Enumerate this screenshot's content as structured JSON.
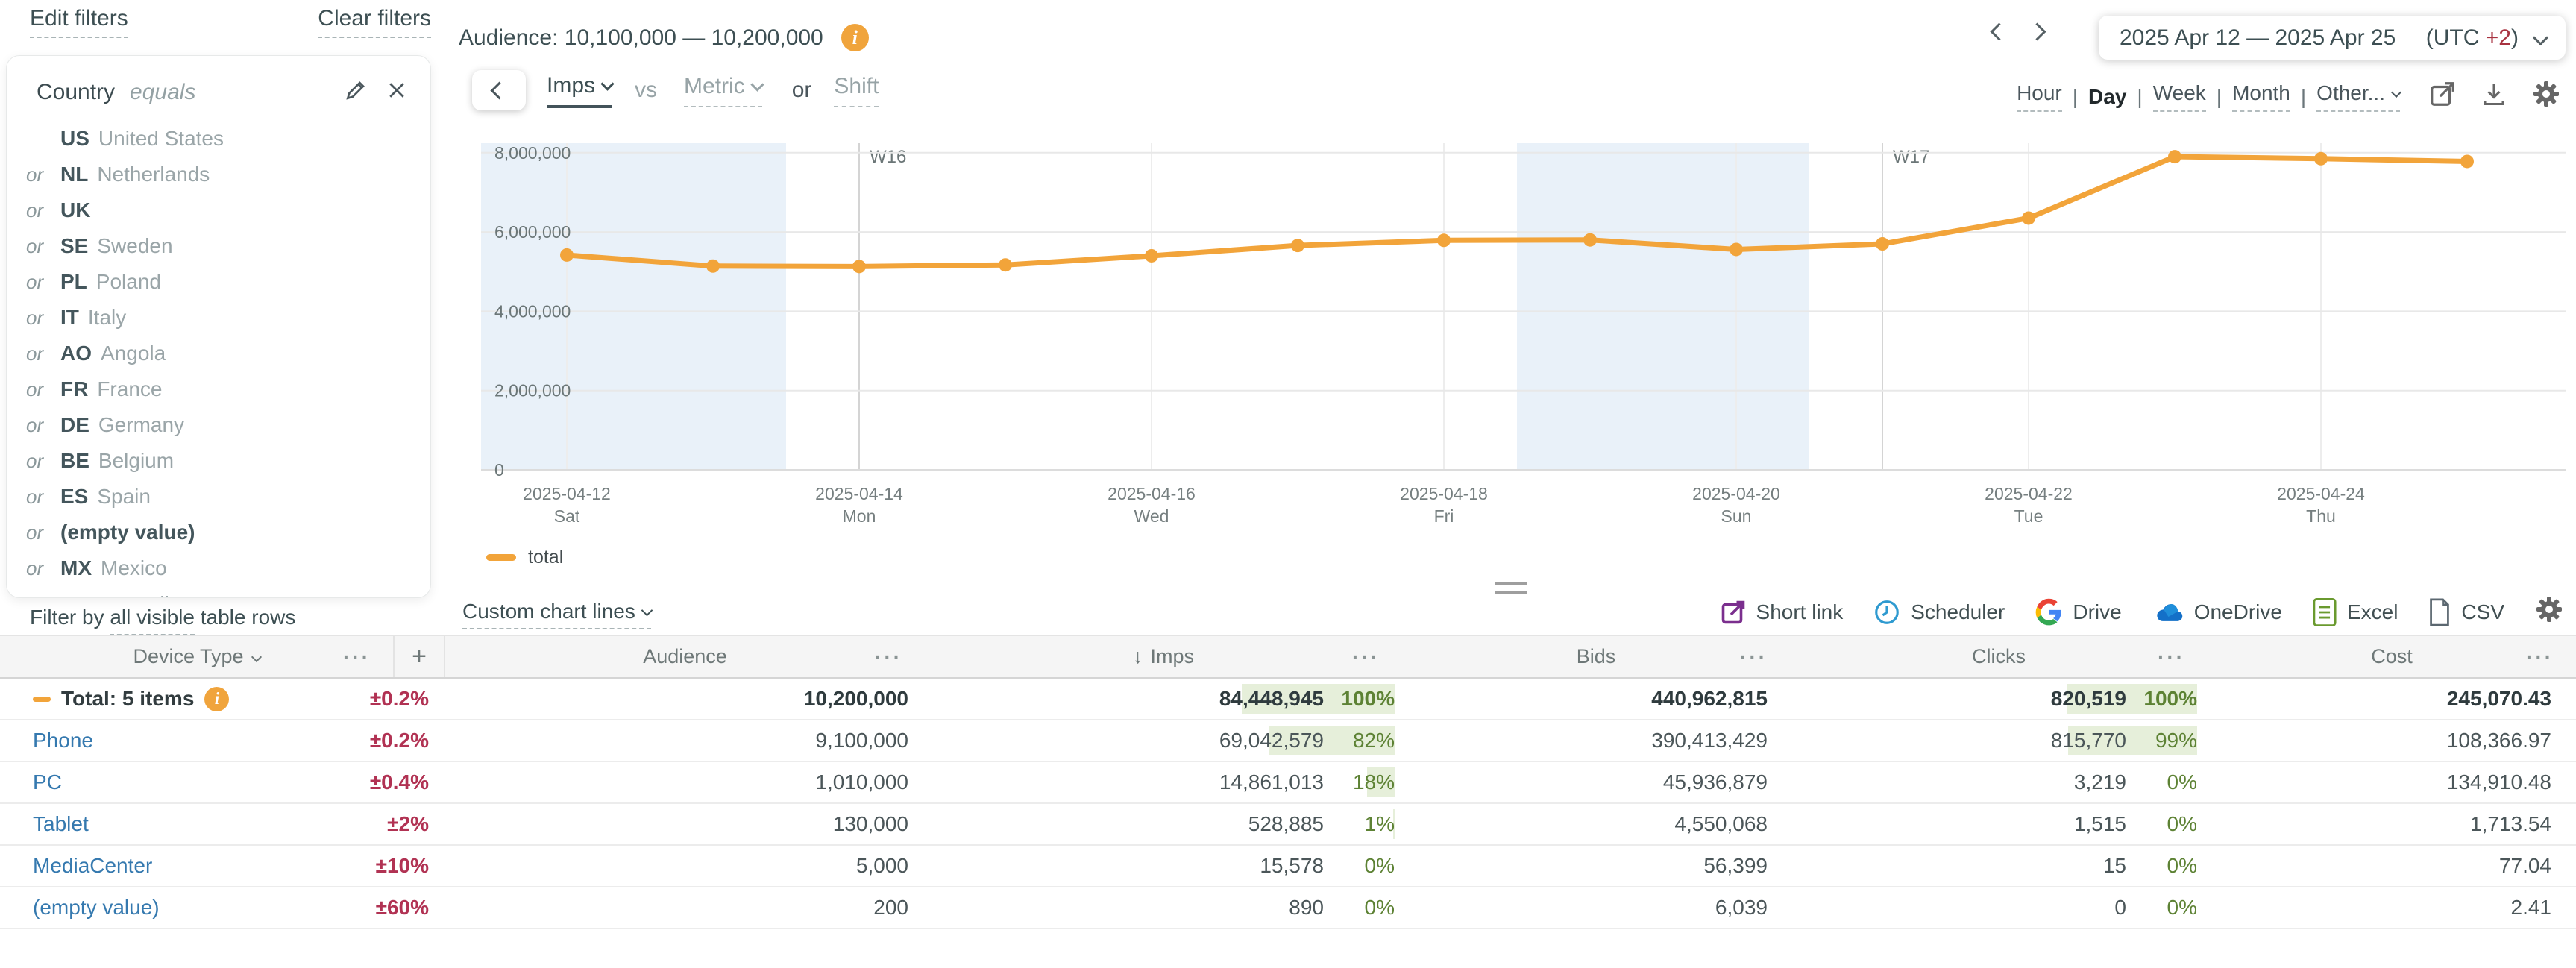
{
  "filters": {
    "edit_label": "Edit filters",
    "clear_label": "Clear filters",
    "field": "Country",
    "operator": "equals",
    "items": [
      {
        "or": "",
        "code": "US",
        "name": "United States"
      },
      {
        "or": "or",
        "code": "NL",
        "name": "Netherlands"
      },
      {
        "or": "or",
        "code": "UK",
        "name": ""
      },
      {
        "or": "or",
        "code": "SE",
        "name": "Sweden"
      },
      {
        "or": "or",
        "code": "PL",
        "name": "Poland"
      },
      {
        "or": "or",
        "code": "IT",
        "name": "Italy"
      },
      {
        "or": "or",
        "code": "AO",
        "name": "Angola"
      },
      {
        "or": "or",
        "code": "FR",
        "name": "France"
      },
      {
        "or": "or",
        "code": "DE",
        "name": "Germany"
      },
      {
        "or": "or",
        "code": "BE",
        "name": "Belgium"
      },
      {
        "or": "or",
        "code": "ES",
        "name": "Spain"
      },
      {
        "or": "or",
        "code": "(empty value)",
        "name": ""
      },
      {
        "or": "or",
        "code": "MX",
        "name": "Mexico"
      },
      {
        "or": "or",
        "code": "AU",
        "name": "Australia"
      }
    ],
    "filter_by_prefix": "Filter by",
    "filter_by_link": "all visible",
    "filter_by_suffix": "table rows"
  },
  "header": {
    "audience_label": "Audience:",
    "audience_value": "10,100,000 — 10,200,000",
    "metric_selected": "Imps",
    "vs_label": "vs",
    "metric_placeholder": "Metric",
    "or_label": "or",
    "shift_label": "Shift",
    "date_range": "2025 Apr 12 — 2025 Apr 25",
    "utc_prefix": "(UTC",
    "utc_offset": "+2",
    "utc_suffix": ")",
    "granularity": [
      "Hour",
      "Day",
      "Week",
      "Month",
      "Other..."
    ],
    "granularity_selected": "Day"
  },
  "icons": {
    "menu": "···",
    "sort": "↓",
    "plus": "+"
  },
  "chart_data": {
    "type": "line",
    "title": "",
    "x": [
      "2025-04-12",
      "2025-04-13",
      "2025-04-14",
      "2025-04-15",
      "2025-04-16",
      "2025-04-17",
      "2025-04-18",
      "2025-04-19",
      "2025-04-20",
      "2025-04-21",
      "2025-04-22",
      "2025-04-23",
      "2025-04-24",
      "2025-04-25"
    ],
    "series": [
      {
        "name": "total",
        "color": "#f2a43a",
        "values": [
          5420000,
          5140000,
          5130000,
          5170000,
          5400000,
          5660000,
          5790000,
          5800000,
          5560000,
          5700000,
          6350000,
          7900000,
          7850000,
          7780000
        ]
      }
    ],
    "y_ticks": [
      0,
      2000000,
      4000000,
      6000000,
      8000000
    ],
    "ylim": [
      0,
      8800000
    ],
    "x_ticks": [
      {
        "date": "2025-04-12",
        "day": "Sat"
      },
      {
        "date": "2025-04-14",
        "day": "Mon"
      },
      {
        "date": "2025-04-16",
        "day": "Wed"
      },
      {
        "date": "2025-04-18",
        "day": "Fri"
      },
      {
        "date": "2025-04-20",
        "day": "Sun"
      },
      {
        "date": "2025-04-22",
        "day": "Tue"
      },
      {
        "date": "2025-04-24",
        "day": "Thu"
      }
    ],
    "week_markers": [
      {
        "label": "W16",
        "x": "2025-04-14"
      },
      {
        "label": "W17",
        "x": "2025-04-21"
      }
    ],
    "weekend_bands": [
      [
        "2025-04-12",
        "2025-04-13"
      ],
      [
        "2025-04-19",
        "2025-04-20"
      ]
    ],
    "legend": [
      "total"
    ],
    "grid": true,
    "legend_position": "bottom-left"
  },
  "chart_toolbar": {
    "custom_lines_label": "Custom chart lines",
    "exports": [
      {
        "label": "Short link",
        "icon": "external-link"
      },
      {
        "label": "Scheduler",
        "icon": "clock"
      },
      {
        "label": "Drive",
        "icon": "google-g"
      },
      {
        "label": "OneDrive",
        "icon": "cloud"
      },
      {
        "label": "Excel",
        "icon": "excel-doc"
      },
      {
        "label": "CSV",
        "icon": "csv-doc"
      }
    ]
  },
  "table": {
    "columns": [
      "Device Type",
      "Audience",
      "Imps",
      "Bids",
      "Clicks",
      "Cost"
    ],
    "sort_column": "Imps",
    "rows": [
      {
        "name": "Total: 5 items",
        "type": "total",
        "delta": "±0.2%",
        "audience": "10,200,000",
        "imps": "84,448,945",
        "imps_pct": "100%",
        "bids": "440,962,815",
        "clicks": "820,519",
        "clicks_pct": "100%",
        "cost": "245,070.43"
      },
      {
        "name": "Phone",
        "type": "row",
        "delta": "±0.2%",
        "audience": "9,100,000",
        "imps": "69,042,579",
        "imps_pct": "82%",
        "bids": "390,413,429",
        "clicks": "815,770",
        "clicks_pct": "99%",
        "cost": "108,366.97"
      },
      {
        "name": "PC",
        "type": "row",
        "delta": "±0.4%",
        "audience": "1,010,000",
        "imps": "14,861,013",
        "imps_pct": "18%",
        "bids": "45,936,879",
        "clicks": "3,219",
        "clicks_pct": "0%",
        "cost": "134,910.48"
      },
      {
        "name": "Tablet",
        "type": "row",
        "delta": "±2%",
        "audience": "130,000",
        "imps": "528,885",
        "imps_pct": "1%",
        "bids": "4,550,068",
        "clicks": "1,515",
        "clicks_pct": "0%",
        "cost": "1,713.54"
      },
      {
        "name": "MediaCenter",
        "type": "row",
        "delta": "±10%",
        "audience": "5,000",
        "imps": "15,578",
        "imps_pct": "0%",
        "bids": "56,399",
        "clicks": "15",
        "clicks_pct": "0%",
        "cost": "77.04"
      },
      {
        "name": "(empty value)",
        "type": "row",
        "delta": "±60%",
        "audience": "200",
        "imps": "890",
        "imps_pct": "0%",
        "bids": "6,039",
        "clicks": "0",
        "clicks_pct": "0%",
        "cost": "2.41"
      }
    ]
  },
  "colors": {
    "accent_orange": "#f2a43a",
    "link_blue": "#3579af",
    "negative_red": "#b13253",
    "positive_green": "#5d8234",
    "green_bar_bg": "#e6efda",
    "weekend_band": "#e9f1f9"
  }
}
